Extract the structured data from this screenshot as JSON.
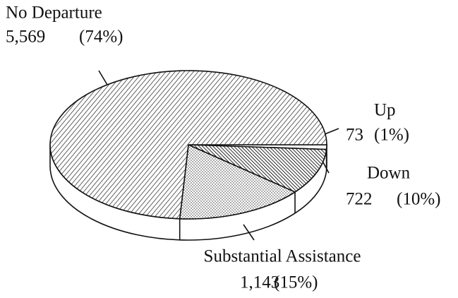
{
  "chart_data": {
    "type": "pie",
    "categories": [
      "No Departure",
      "Up",
      "Down",
      "Substantial Assistance"
    ],
    "values": [
      74,
      1,
      10,
      15
    ],
    "value_labels": [
      "(74%)",
      "(1%)",
      "(10%)",
      "(15%)"
    ],
    "counts": [
      5569,
      73,
      722,
      1143
    ],
    "count_labels": [
      "5,569",
      "73",
      "722",
      "1,143"
    ]
  }
}
